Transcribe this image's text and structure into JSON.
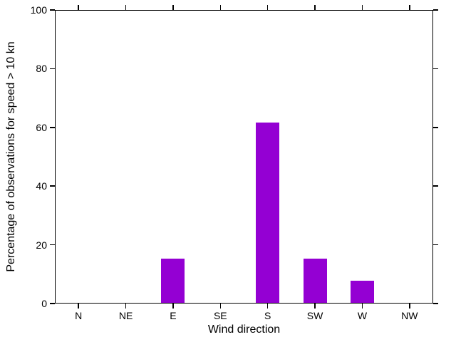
{
  "chart_data": {
    "type": "bar",
    "title": "",
    "categories": [
      "N",
      "NE",
      "E",
      "SE",
      "S",
      "SW",
      "W",
      "NW"
    ],
    "values": [
      0,
      0,
      15.38,
      0,
      61.54,
      15.38,
      7.69,
      0
    ],
    "xlabel": "Wind direction",
    "ylabel": "Percentage of observations for speed > 10 kn",
    "ylim": [
      0,
      100
    ],
    "yticks": [
      0,
      20,
      40,
      60,
      80,
      100
    ],
    "ytick_labels": [
      "0",
      "20",
      "40",
      "60",
      "80",
      "100"
    ],
    "bar_color": "#9400D3",
    "axis_color": "#000000",
    "grid": false,
    "legend_position": "none",
    "tick_direction": "out",
    "ticks_mirrored": true
  }
}
